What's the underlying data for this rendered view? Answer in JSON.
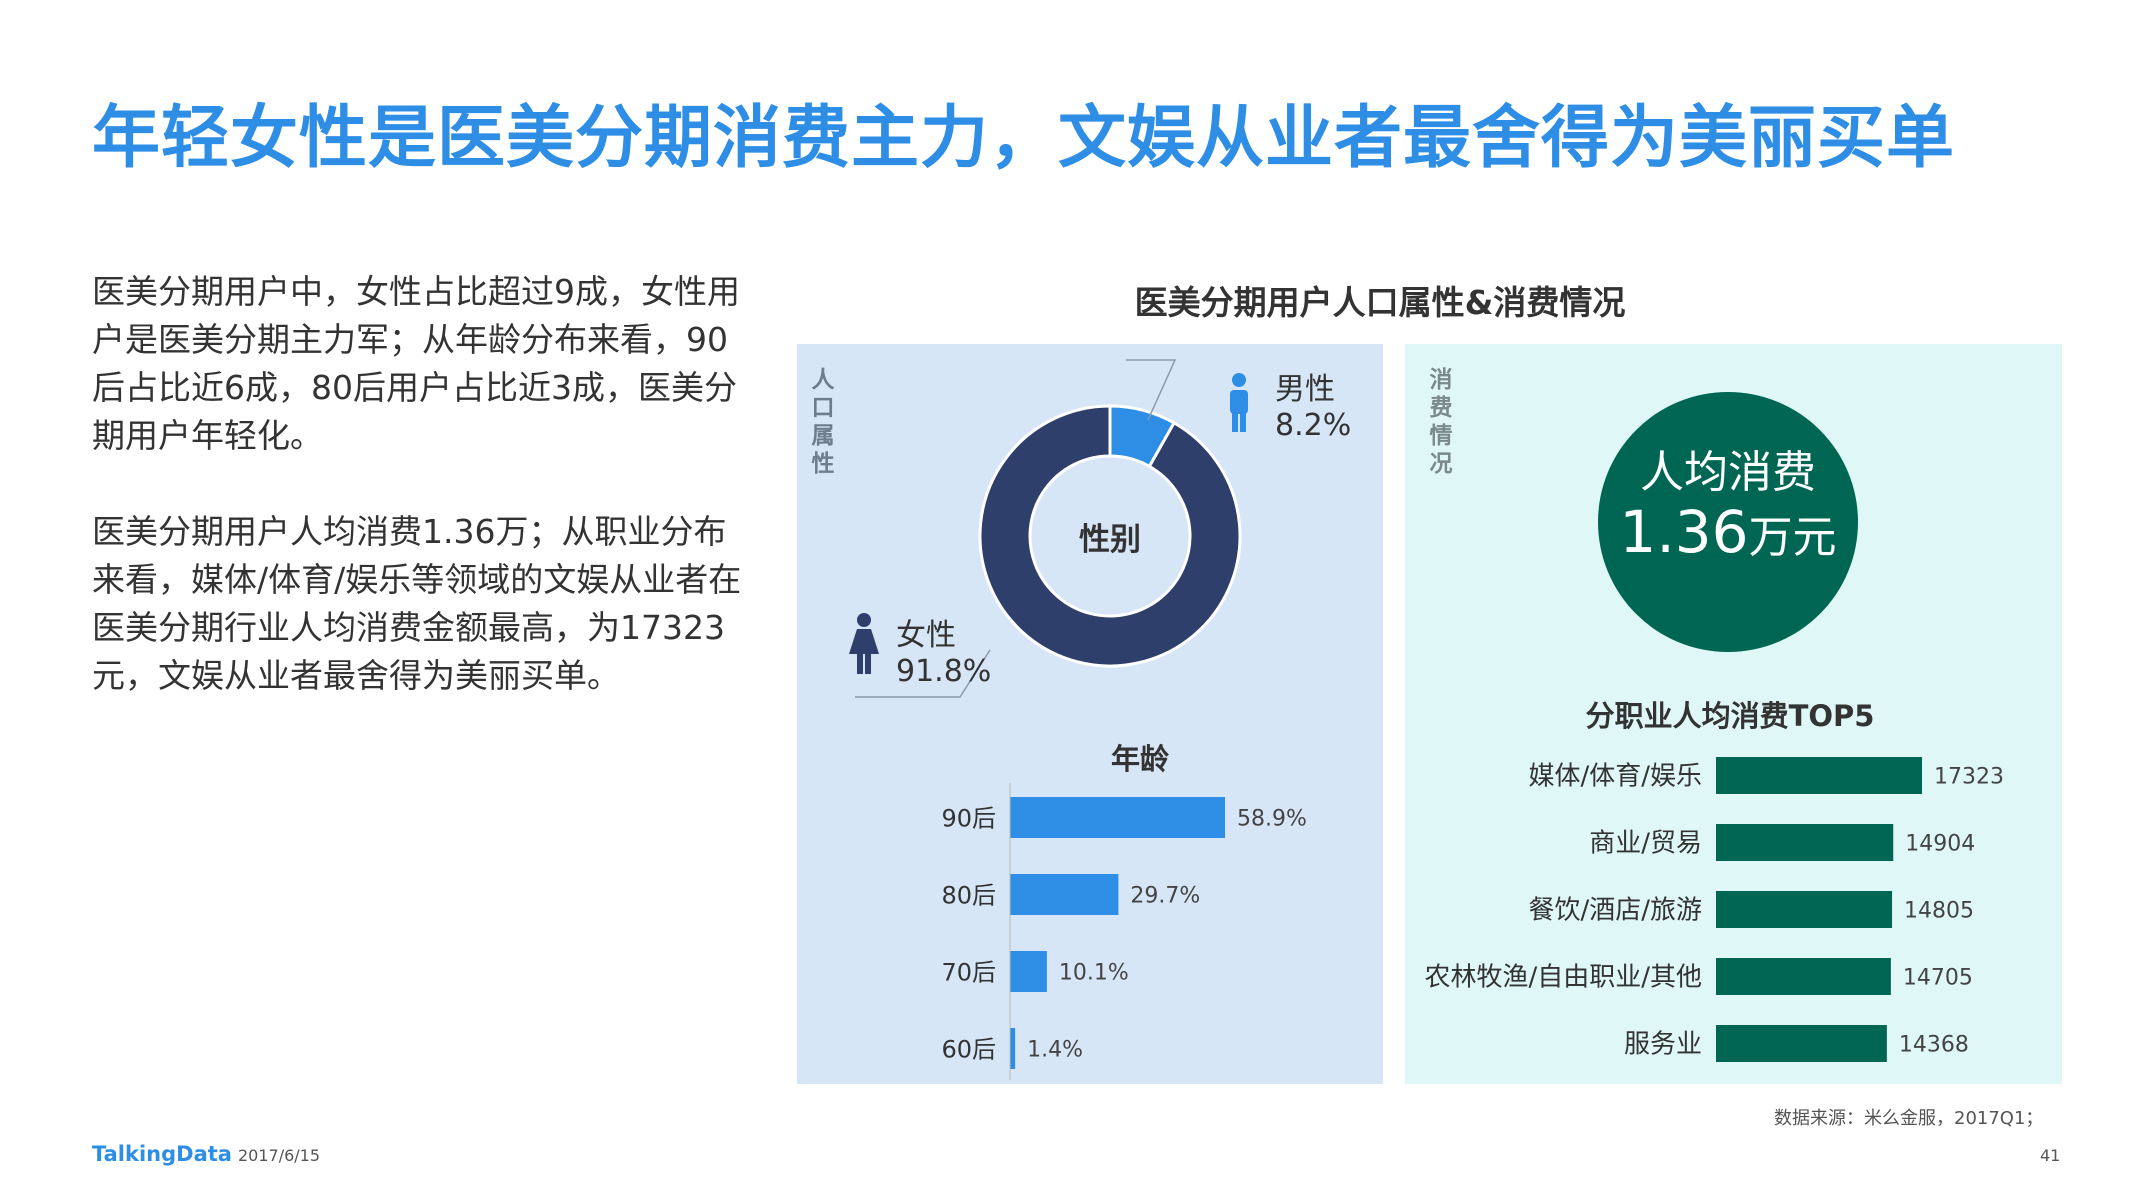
{
  "page_title": "年轻女性是医美分期消费主力，文娱从业者最舍得为美丽买单",
  "paragraphs": {
    "p1": "医美分期用户中，女性占比超过9成，女性用户是医美分期主力军；从年龄分布来看，90后占比近6成，80后用户占比近3成，医美分期用户年轻化。",
    "p2": "医美分期用户人均消费1.36万；从职业分布来看，媒体/体育/娱乐等领域的文娱从业者在医美分期行业人均消费金额最高，为17323元，文娱从业者最舍得为美丽买单。"
  },
  "figure_title": "医美分期用户人口属性&消费情况",
  "panel_labels": {
    "left": "人口属性",
    "right": "消费情况"
  },
  "spend_circle": {
    "label": "人均消费",
    "value": "1.36",
    "unit": "万元"
  },
  "footer": {
    "source": "数据来源：米么金服，2017Q1；",
    "logo": "TalkingData",
    "date": "2017/6/15",
    "page": "41"
  },
  "colors": {
    "title_blue": "#2e8de5",
    "dark_navy": "#2d3f6a",
    "bar_blue": "#2e8de5",
    "teal": "#006654",
    "panel_blue": "#d6e6f7",
    "panel_teal": "#dff8f7"
  },
  "icons": [
    "male-person-icon",
    "female-person-icon"
  ],
  "chart_data": [
    {
      "type": "pie",
      "title": "性别",
      "categories": [
        "男性",
        "女性"
      ],
      "values": [
        8.2,
        91.8
      ],
      "value_labels": [
        "8.2%",
        "91.8%"
      ],
      "colors": [
        "#2e8de5",
        "#2d3f6a"
      ],
      "donut": true
    },
    {
      "type": "bar",
      "orientation": "horizontal",
      "title": "年龄",
      "categories": [
        "90后",
        "80后",
        "70后",
        "60后"
      ],
      "values": [
        58.9,
        29.7,
        10.1,
        1.4
      ],
      "value_labels": [
        "58.9%",
        "29.7%",
        "10.1%",
        "1.4%"
      ],
      "color": "#2e8de5"
    },
    {
      "type": "bar",
      "orientation": "horizontal",
      "title": "分职业人均消费TOP5",
      "categories": [
        "媒体/体育/娱乐",
        "商业/贸易",
        "餐饮/酒店/旅游",
        "农林牧渔/自由职业/其他",
        "服务业"
      ],
      "values": [
        17323,
        14904,
        14805,
        14705,
        14368
      ],
      "value_labels": [
        "17323",
        "14904",
        "14805",
        "14705",
        "14368"
      ],
      "color": "#006654"
    }
  ]
}
